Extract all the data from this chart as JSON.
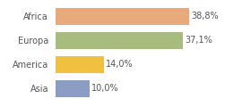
{
  "categories": [
    "Asia",
    "America",
    "Europa",
    "Africa"
  ],
  "values": [
    10.0,
    14.0,
    37.1,
    38.8
  ],
  "bar_colors": [
    "#8b9dc4",
    "#f0c040",
    "#a8bc80",
    "#e8aa7a"
  ],
  "labels": [
    "10,0%",
    "14,0%",
    "37,1%",
    "38,8%"
  ],
  "xlim": [
    0,
    48
  ],
  "background_color": "#ffffff",
  "bar_height": 0.72,
  "label_fontsize": 7.0,
  "tick_fontsize": 7.0,
  "label_color": "#555555",
  "tick_color": "#555555"
}
